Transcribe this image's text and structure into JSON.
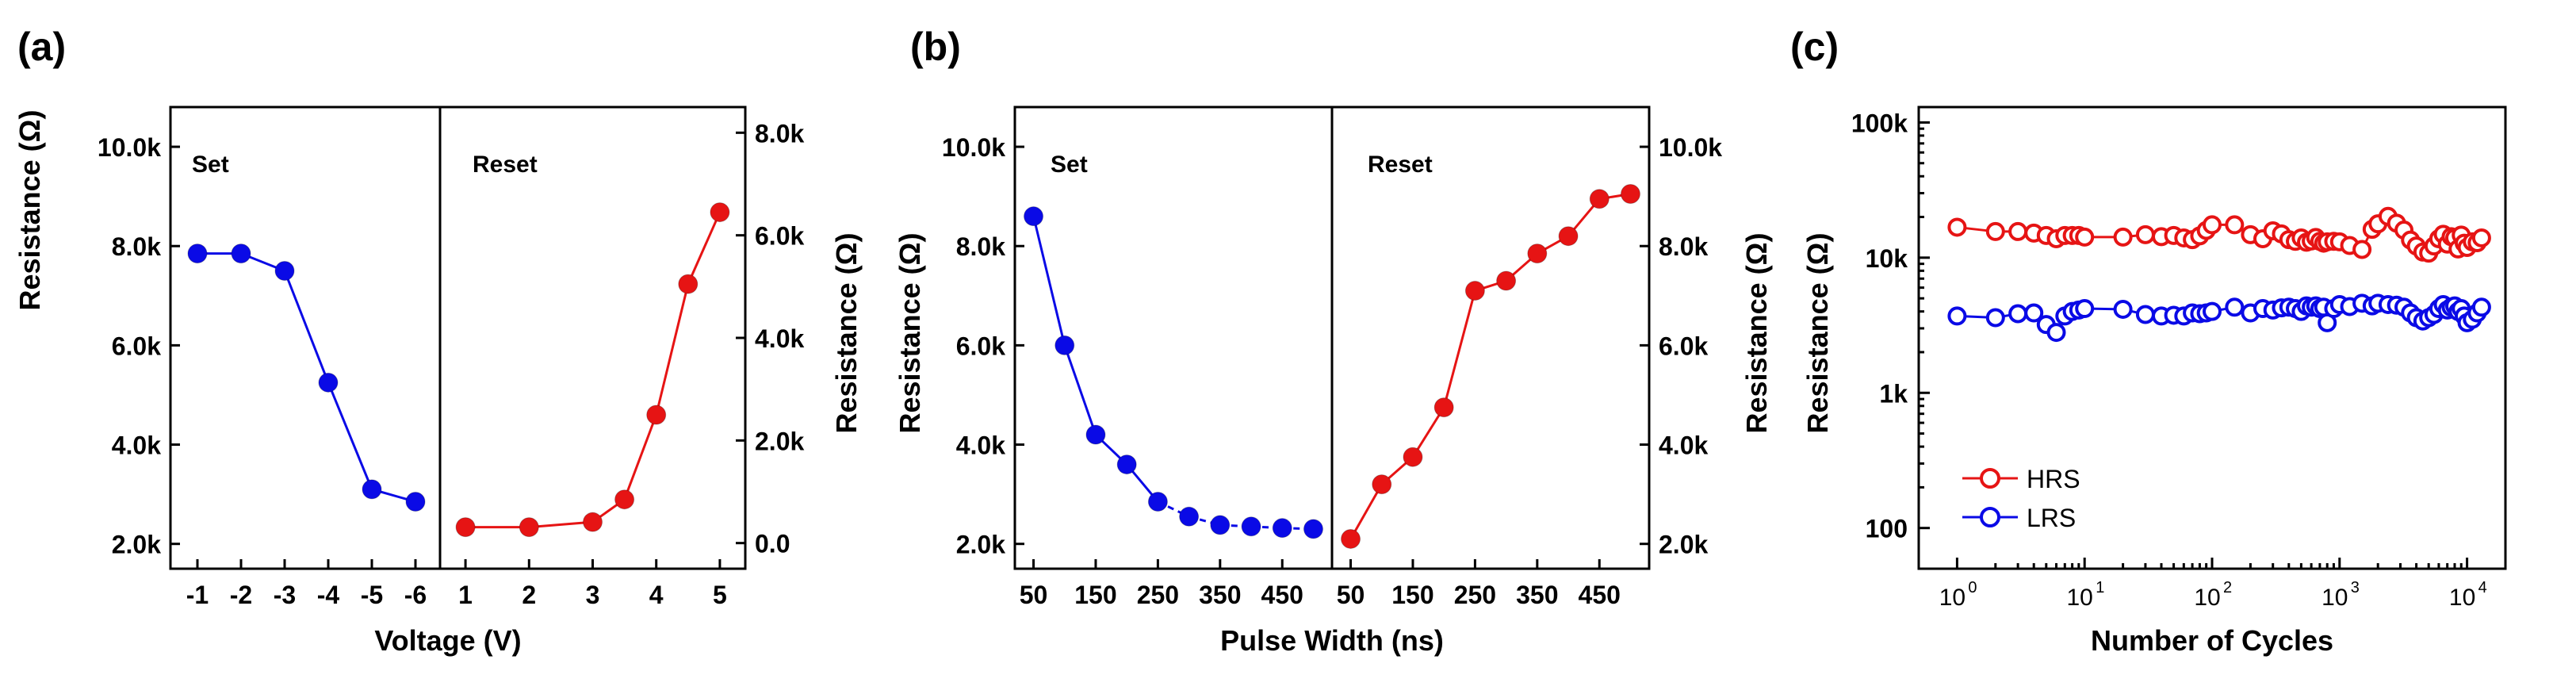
{
  "colors": {
    "set": "#0a0ae6",
    "reset": "#e61414",
    "hrs": "#e61414",
    "lrs": "#0a0ae6",
    "axis": "#000000"
  },
  "chart_data": [
    {
      "panel": "(a)",
      "type": "line",
      "xlabel": "Voltage (V)",
      "subpanels": [
        {
          "label": "Set",
          "ylabel": "Resistance (Ω)",
          "ylim": [
            1500,
            10800
          ],
          "yticks": [
            2000,
            4000,
            6000,
            8000,
            10000
          ],
          "ytick_labels": [
            "2.0k",
            "4.0k",
            "6.0k",
            "8.0k",
            "10.0k"
          ],
          "x_labels": [
            "-1",
            "-2",
            "-3",
            "-4",
            "-5",
            "-6"
          ],
          "values": [
            7850,
            7850,
            7500,
            5250,
            3100,
            2850
          ]
        },
        {
          "label": "Reset",
          "ylabel": "Resistance (Ω)",
          "ylim": [
            -500,
            8500
          ],
          "yticks": [
            0,
            2000,
            4000,
            6000,
            8000
          ],
          "ytick_labels": [
            "0.0",
            "2.0k",
            "4.0k",
            "6.0k",
            "8.0k"
          ],
          "x_ticks": [
            1,
            2,
            3,
            4,
            5
          ],
          "xlim": [
            0.6,
            5.4
          ],
          "x": [
            1,
            2,
            3,
            3.5,
            4,
            4.5,
            5
          ],
          "values": [
            310,
            310,
            410,
            850,
            2500,
            5050,
            6450
          ]
        }
      ]
    },
    {
      "panel": "(b)",
      "type": "line",
      "xlabel": "Pulse Width (ns)",
      "subpanels": [
        {
          "label": "Set",
          "ylabel": "Resistance (Ω)",
          "ylim": [
            1500,
            10800
          ],
          "yticks": [
            2000,
            4000,
            6000,
            8000,
            10000
          ],
          "ytick_labels": [
            "2.0k",
            "4.0k",
            "6.0k",
            "8.0k",
            "10.0k"
          ],
          "xlim": [
            20,
            530
          ],
          "x_ticks": [
            50,
            150,
            250,
            350,
            450
          ],
          "x": [
            50,
            100,
            150,
            200,
            250,
            300,
            350,
            400,
            450,
            500
          ],
          "values": [
            8600,
            6000,
            4200,
            3600,
            2850,
            2550,
            2380,
            2350,
            2320,
            2300
          ]
        },
        {
          "label": "Reset",
          "ylabel": "Resistance (Ω)",
          "ylim": [
            1500,
            10800
          ],
          "yticks": [
            2000,
            4000,
            6000,
            8000,
            10000
          ],
          "ytick_labels": [
            "2.0k",
            "4.0k",
            "6.0k",
            "8.0k",
            "10.0k"
          ],
          "xlim": [
            20,
            530
          ],
          "x_ticks": [
            50,
            150,
            250,
            350,
            450
          ],
          "x": [
            50,
            100,
            150,
            200,
            250,
            300,
            350,
            400,
            450,
            500
          ],
          "values": [
            2100,
            3200,
            3750,
            4750,
            7100,
            7300,
            7850,
            8200,
            8950,
            9050
          ]
        }
      ]
    },
    {
      "panel": "(c)",
      "type": "scatter",
      "xlabel": "Number of Cycles",
      "ylabel": "Resistance (Ω)",
      "xscale": "log",
      "yscale": "log",
      "xlim": [
        0.5,
        20000
      ],
      "ylim": [
        50,
        130000
      ],
      "xtick_exponents": [
        0,
        1,
        2,
        3,
        4
      ],
      "xtick_base": "10",
      "yticks": [
        100,
        1000,
        10000,
        100000
      ],
      "ytick_labels": [
        "100",
        "1k",
        "10k",
        "100k"
      ],
      "legend_position": "bottom-left",
      "series": [
        {
          "name": "HRS",
          "x": [
            1,
            2,
            3,
            4,
            5,
            6,
            7,
            8,
            9,
            10,
            20,
            30,
            40,
            50,
            60,
            70,
            80,
            90,
            100,
            150,
            200,
            250,
            300,
            350,
            400,
            450,
            500,
            550,
            600,
            650,
            700,
            750,
            800,
            900,
            1000,
            1200,
            1500,
            1800,
            2000,
            2400,
            2800,
            3200,
            3600,
            4000,
            4500,
            5000,
            5500,
            6000,
            6500,
            7000,
            7500,
            8000,
            8500,
            9000,
            9500,
            10000,
            11000,
            12000,
            13000
          ],
          "values": [
            16800,
            15600,
            15600,
            15200,
            14600,
            13800,
            14600,
            14600,
            14600,
            14200,
            14200,
            14800,
            14300,
            14600,
            14000,
            13600,
            14500,
            15900,
            17500,
            17500,
            14800,
            13800,
            15800,
            15000,
            13600,
            13200,
            14000,
            13000,
            13300,
            14100,
            13200,
            12800,
            13100,
            13200,
            13100,
            12300,
            11500,
            16200,
            17800,
            20200,
            18000,
            16000,
            13500,
            12200,
            11000,
            10800,
            12200,
            13800,
            14900,
            12600,
            14300,
            14000,
            11600,
            14700,
            12800,
            11900,
            13100,
            12900,
            14000
          ]
        },
        {
          "name": "LRS",
          "x": [
            1,
            2,
            3,
            4,
            5,
            6,
            7,
            8,
            9,
            10,
            20,
            30,
            40,
            50,
            60,
            70,
            80,
            90,
            100,
            150,
            200,
            250,
            300,
            350,
            400,
            450,
            500,
            550,
            600,
            650,
            700,
            750,
            800,
            900,
            1000,
            1200,
            1500,
            1800,
            2000,
            2400,
            2800,
            3200,
            3600,
            4000,
            4500,
            5000,
            5500,
            6000,
            6500,
            7000,
            7500,
            8000,
            8500,
            9000,
            9500,
            10000,
            11000,
            12000,
            13000
          ],
          "values": [
            3700,
            3600,
            3850,
            3900,
            3200,
            2800,
            3700,
            4000,
            4100,
            4200,
            4150,
            3800,
            3700,
            3750,
            3700,
            3900,
            3850,
            3900,
            4000,
            4300,
            3900,
            4200,
            4100,
            4250,
            4300,
            4200,
            4000,
            4400,
            4300,
            4400,
            4200,
            4300,
            3300,
            4200,
            4500,
            4350,
            4600,
            4400,
            4600,
            4500,
            4450,
            4300,
            3900,
            3600,
            3400,
            3600,
            3800,
            4200,
            4500,
            4100,
            4300,
            4400,
            4000,
            4200,
            3700,
            3300,
            3500,
            3900,
            4300
          ]
        }
      ]
    }
  ]
}
